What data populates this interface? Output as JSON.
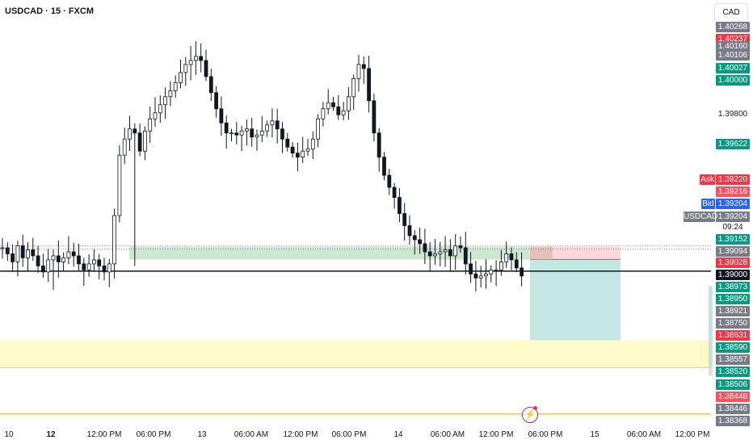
{
  "header": {
    "symbol_title": "USDCAD · 15 · FXCM",
    "currency_button": "CAD"
  },
  "chart_data": {
    "type": "candlestick",
    "symbol": "USDCAD",
    "interval": "15",
    "source": "FXCM",
    "ylim": [
      1.3834,
      1.4032
    ],
    "price_ticks": [
      "1.40268",
      "1.40237",
      "1.40160",
      "1.40106",
      "1.40027",
      "1.40000",
      "1.39800",
      "1.39622",
      "1.39220",
      "1.39216",
      "1.39204",
      "1.39204",
      "1.39152",
      "1.39094",
      "1.39028",
      "1.39000",
      "1.38973",
      "1.38950",
      "1.38921",
      "1.38750",
      "1.38631",
      "1.38590",
      "1.38557",
      "1.38520",
      "1.38506",
      "1.38448",
      "1.38446",
      "1.38368"
    ],
    "time_ticks": [
      "10",
      "12",
      "12:00 PM",
      "06:00 PM",
      "13",
      "06:00 AM",
      "12:00 PM",
      "06:00 PM",
      "14",
      "06:00 AM",
      "12:00 PM",
      "06:00 PM",
      "15",
      "06:00 AM",
      "12:00 PM"
    ],
    "bold_time_ticks": [
      "12"
    ],
    "close_path": [
      1.3921,
      1.3918,
      1.3914,
      1.3922,
      1.3916,
      1.392,
      1.3917,
      1.3912,
      1.3909,
      1.3915,
      1.3917,
      1.3914,
      1.3916,
      1.3919,
      1.3917,
      1.3913,
      1.391,
      1.3913,
      1.3915,
      1.3912,
      1.3909,
      1.3913,
      1.3937,
      1.3967,
      1.3975,
      1.398,
      1.3978,
      1.3969,
      1.3979,
      1.3985,
      1.3988,
      1.3992,
      1.3996,
      1.3999,
      1.4003,
      1.4008,
      1.4012,
      1.4014,
      1.4016,
      1.4014,
      1.4006,
      1.3998,
      1.399,
      1.3983,
      1.3978,
      1.3978,
      1.3977,
      1.3979,
      1.398,
      1.3976,
      1.3977,
      1.3979,
      1.3982,
      1.3984,
      1.398,
      1.3975,
      1.3971,
      1.3968,
      1.3966,
      1.3969,
      1.397,
      1.3975,
      1.3985,
      1.399,
      1.3993,
      1.3991,
      1.3987,
      1.3989,
      1.3996,
      1.4005,
      1.4012,
      1.401,
      1.3994,
      1.3978,
      1.3966,
      1.3957,
      1.3951,
      1.3946,
      1.3938,
      1.3932,
      1.3927,
      1.3925,
      1.3923,
      1.3919,
      1.3917,
      1.3918,
      1.3919,
      1.392,
      1.3917,
      1.3922,
      1.3921,
      1.3913,
      1.3908,
      1.3906,
      1.3907,
      1.3908,
      1.391,
      1.391,
      1.3914,
      1.3918,
      1.3915,
      1.3911,
      1.3907
    ],
    "current_price": "1.39204",
    "countdown": "09:24",
    "symbol_tag": "USDCAD",
    "ask_label": "Ask",
    "bid_label": "Bid",
    "levels": {
      "ask_price": 1.3922,
      "bid_price": 1.39204,
      "black_line": 1.39094,
      "top_yellow_band": [
        1.38751,
        1.38615
      ],
      "bottom_yellow_line": 1.38385,
      "green_zone": [
        1.39216,
        1.39152
      ],
      "position_stop": [
        1.39216,
        1.39152
      ],
      "position_target": [
        1.39152,
        1.38751
      ]
    },
    "colors": {
      "up": "#089981",
      "down": "#f23645",
      "candle": "#131722",
      "ask": "#f23645",
      "bid": "#2962ff",
      "green_zone": "#a5d6a7",
      "target_zone": "#b2dfdb",
      "stop_zone": "#fccbcd",
      "yellow": "#fff9c4",
      "grey_tag": "#787b86"
    }
  },
  "price_labels": [
    {
      "text": "1.40268",
      "bg": "#787b86"
    },
    {
      "text": "1.40237",
      "bg": "#f23645"
    },
    {
      "text": "1.40160",
      "bg": "#787b86"
    },
    {
      "text": "1.40106",
      "bg": "#787b86"
    },
    {
      "text": "1.40027",
      "bg": "#089981"
    },
    {
      "text": "1.40000",
      "bg": "#089981"
    },
    {
      "text": "1.39800",
      "bg": ""
    },
    {
      "text": "1.39622",
      "bg": "#089981"
    },
    {
      "text": "1.39220",
      "bg": "#f23645"
    },
    {
      "text": "1.39216",
      "bg": "#f7525f"
    },
    {
      "text": "1.39204",
      "bg": "#2962ff"
    },
    {
      "text": "1.39204",
      "bg": "#787b86"
    },
    {
      "text": "1.39152",
      "bg": "#089981"
    },
    {
      "text": "1.39094",
      "bg": "#787b86"
    },
    {
      "text": "1.39028",
      "bg": "#f23645"
    },
    {
      "text": "1.39000",
      "bg": "#131722"
    },
    {
      "text": "1.38973",
      "bg": "#089981"
    },
    {
      "text": "1.38950",
      "bg": "#089981"
    },
    {
      "text": "1.38921",
      "bg": "#787b86"
    },
    {
      "text": "1.38750",
      "bg": "#787b86"
    },
    {
      "text": "1.38631",
      "bg": "#f23645"
    },
    {
      "text": "1.38590",
      "bg": "#089981"
    },
    {
      "text": "1.38557",
      "bg": "#787b86"
    },
    {
      "text": "1.38520",
      "bg": "#089981"
    },
    {
      "text": "1.38506",
      "bg": "#089981"
    },
    {
      "text": "1.38448",
      "bg": "#f7525f"
    },
    {
      "text": "1.38446",
      "bg": "#787b86"
    },
    {
      "text": "1.38368",
      "bg": "#787b86"
    }
  ]
}
